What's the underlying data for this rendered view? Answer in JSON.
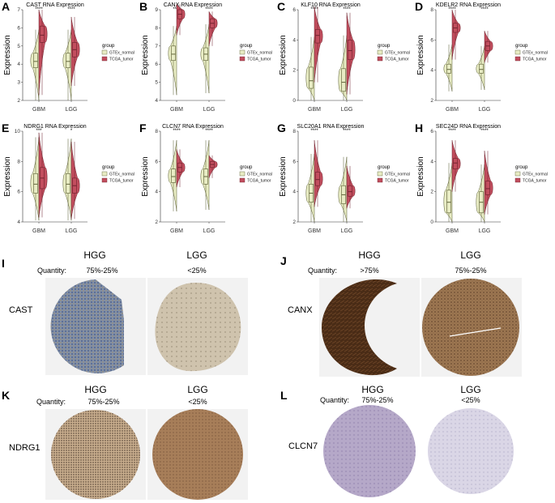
{
  "figure_letters": [
    "A",
    "B",
    "C",
    "D",
    "E",
    "F",
    "G",
    "H",
    "I",
    "J",
    "K",
    "L"
  ],
  "axis_ylabel": "Expression",
  "legend": {
    "title": "group",
    "items": [
      {
        "label": "GTEx_normal",
        "color": "#e8ecc4"
      },
      {
        "label": "TCGA_tumor",
        "color": "#c24e5e"
      }
    ]
  },
  "colors": {
    "normal": "#e8ecc4",
    "tumor": "#c24e5e",
    "normal_stroke": "#55582e",
    "tumor_stroke": "#6a1f2a"
  },
  "chart_data": [
    {
      "type": "violin-box",
      "letter": "A",
      "title": "CAST RNA Expression",
      "categories": [
        "GBM",
        "LGG"
      ],
      "ylim": [
        2,
        7
      ],
      "yticks": [
        2,
        3,
        4,
        5,
        6,
        7
      ],
      "ylabel": "Expression",
      "significance": [
        "****",
        "****"
      ],
      "series": [
        {
          "name": "GTEx_normal",
          "groups": [
            {
              "min": 2.0,
              "q1": 3.8,
              "median": 4.15,
              "q3": 4.6,
              "max": 5.9
            },
            {
              "min": 2.0,
              "q1": 3.8,
              "median": 4.15,
              "q3": 4.6,
              "max": 5.9
            }
          ]
        },
        {
          "name": "TCGA_tumor",
          "groups": [
            {
              "min": 2.3,
              "q1": 5.2,
              "median": 5.6,
              "q3": 6.1,
              "max": 7.0
            },
            {
              "min": 2.8,
              "q1": 4.4,
              "median": 4.8,
              "q3": 5.2,
              "max": 6.6
            }
          ]
        }
      ]
    },
    {
      "type": "violin-box",
      "letter": "B",
      "title": "CANX RNA Expression",
      "categories": [
        "GBM",
        "LGG"
      ],
      "ylim": [
        4,
        9
      ],
      "yticks": [
        4,
        5,
        6,
        7,
        8,
        9
      ],
      "ylabel": "Expression",
      "significance": [
        "****",
        "****"
      ],
      "series": [
        {
          "name": "GTEx_normal",
          "groups": [
            {
              "min": 4.3,
              "q1": 6.2,
              "median": 6.55,
              "q3": 7.0,
              "max": 8.1
            },
            {
              "min": 4.4,
              "q1": 6.2,
              "median": 6.55,
              "q3": 6.9,
              "max": 8.2
            }
          ]
        },
        {
          "name": "TCGA_tumor",
          "groups": [
            {
              "min": 7.6,
              "q1": 8.5,
              "median": 8.75,
              "q3": 9.0,
              "max": 9.3
            },
            {
              "min": 7.0,
              "q1": 8.0,
              "median": 8.25,
              "q3": 8.5,
              "max": 8.9
            }
          ]
        }
      ]
    },
    {
      "type": "violin-box",
      "letter": "C",
      "title": "KLF10 RNA Expression",
      "categories": [
        "GBM",
        "LGG"
      ],
      "ylim": [
        0,
        6
      ],
      "yticks": [
        0,
        2,
        4,
        6
      ],
      "ylabel": "Expression",
      "significance": [
        "****",
        "****"
      ],
      "series": [
        {
          "name": "GTEx_normal",
          "groups": [
            {
              "min": 0.0,
              "q1": 0.8,
              "median": 1.3,
              "q3": 2.2,
              "max": 4.2
            },
            {
              "min": 0.0,
              "q1": 0.6,
              "median": 1.2,
              "q3": 2.1,
              "max": 4.3
            }
          ]
        },
        {
          "name": "TCGA_tumor",
          "groups": [
            {
              "min": 1.2,
              "q1": 3.8,
              "median": 4.3,
              "q3": 4.7,
              "max": 6.2
            },
            {
              "min": 0.4,
              "q1": 2.7,
              "median": 3.3,
              "q3": 4.0,
              "max": 5.8
            }
          ]
        }
      ]
    },
    {
      "type": "violin-box",
      "letter": "D",
      "title": "KDELR2 RNA Expression",
      "categories": [
        "GBM",
        "LGG"
      ],
      "ylim": [
        2,
        8
      ],
      "yticks": [
        2,
        4,
        6,
        8
      ],
      "ylabel": "Expression",
      "significance": [
        "****",
        "****"
      ],
      "series": [
        {
          "name": "GTEx_normal",
          "groups": [
            {
              "min": 2.6,
              "q1": 3.8,
              "median": 4.05,
              "q3": 4.4,
              "max": 5.7
            },
            {
              "min": 2.7,
              "q1": 3.8,
              "median": 4.05,
              "q3": 4.4,
              "max": 5.6
            }
          ]
        },
        {
          "name": "TCGA_tumor",
          "groups": [
            {
              "min": 4.7,
              "q1": 6.5,
              "median": 6.8,
              "q3": 7.1,
              "max": 8.0
            },
            {
              "min": 4.5,
              "q1": 5.3,
              "median": 5.6,
              "q3": 5.9,
              "max": 6.6
            }
          ]
        }
      ]
    },
    {
      "type": "violin-box",
      "letter": "E",
      "title": "NDRG1 RNA Expression",
      "categories": [
        "GBM",
        "LGG"
      ],
      "ylim": [
        4,
        10
      ],
      "yticks": [
        4,
        6,
        8,
        10
      ],
      "ylabel": "Expression",
      "significance": [
        "***",
        "*"
      ],
      "series": [
        {
          "name": "GTEx_normal",
          "groups": [
            {
              "min": 4.1,
              "q1": 5.9,
              "median": 6.5,
              "q3": 7.2,
              "max": 9.6
            },
            {
              "min": 4.1,
              "q1": 5.9,
              "median": 6.5,
              "q3": 7.2,
              "max": 9.5
            }
          ]
        },
        {
          "name": "TCGA_tumor",
          "groups": [
            {
              "min": 4.3,
              "q1": 6.2,
              "median": 6.9,
              "q3": 7.6,
              "max": 9.9
            },
            {
              "min": 4.2,
              "q1": 5.9,
              "median": 6.4,
              "q3": 6.9,
              "max": 9.3
            }
          ]
        }
      ]
    },
    {
      "type": "violin-box",
      "letter": "F",
      "title": "CLCN7 RNA Expression",
      "categories": [
        "GBM",
        "LGG"
      ],
      "ylim": [
        2,
        8
      ],
      "yticks": [
        2,
        4,
        6,
        8
      ],
      "ylabel": "Expression",
      "significance": [
        "****",
        "****"
      ],
      "series": [
        {
          "name": "GTEx_normal",
          "groups": [
            {
              "min": 2.7,
              "q1": 4.6,
              "median": 5.0,
              "q3": 5.5,
              "max": 7.4
            },
            {
              "min": 2.8,
              "q1": 4.5,
              "median": 5.0,
              "q3": 5.5,
              "max": 7.4
            }
          ]
        },
        {
          "name": "TCGA_tumor",
          "groups": [
            {
              "min": 4.3,
              "q1": 5.3,
              "median": 5.6,
              "q3": 5.9,
              "max": 6.8
            },
            {
              "min": 4.9,
              "q1": 5.6,
              "median": 5.8,
              "q3": 6.0,
              "max": 6.4
            }
          ]
        }
      ]
    },
    {
      "type": "violin-box",
      "letter": "G",
      "title": "SLC20A1 RNA Expression",
      "categories": [
        "GBM",
        "LGG"
      ],
      "ylim": [
        2,
        8
      ],
      "yticks": [
        2,
        4,
        6,
        8
      ],
      "ylabel": "Expression",
      "significance": [
        "****",
        "****"
      ],
      "series": [
        {
          "name": "GTEx_normal",
          "groups": [
            {
              "min": 2.0,
              "q1": 3.3,
              "median": 3.9,
              "q3": 4.5,
              "max": 6.5
            },
            {
              "min": 2.0,
              "q1": 3.2,
              "median": 3.8,
              "q3": 4.4,
              "max": 6.3
            }
          ]
        },
        {
          "name": "TCGA_tumor",
          "groups": [
            {
              "min": 3.0,
              "q1": 4.4,
              "median": 4.8,
              "q3": 5.3,
              "max": 7.4
            },
            {
              "min": 2.9,
              "q1": 3.7,
              "median": 4.0,
              "q3": 4.4,
              "max": 5.7
            }
          ]
        }
      ]
    },
    {
      "type": "violin-box",
      "letter": "H",
      "title": "SEC24D RNA Expression",
      "categories": [
        "GBM",
        "LGG"
      ],
      "ylim": [
        0,
        6
      ],
      "yticks": [
        0,
        2,
        4,
        6
      ],
      "ylabel": "Expression",
      "significance": [
        "****",
        "****"
      ],
      "series": [
        {
          "name": "GTEx_normal",
          "groups": [
            {
              "min": 0.0,
              "q1": 0.6,
              "median": 1.3,
              "q3": 2.1,
              "max": 3.9
            },
            {
              "min": 0.0,
              "q1": 0.6,
              "median": 1.3,
              "q3": 2.0,
              "max": 3.8
            }
          ]
        },
        {
          "name": "TCGA_tumor",
          "groups": [
            {
              "min": 2.0,
              "q1": 3.5,
              "median": 3.9,
              "q3": 4.2,
              "max": 5.4
            },
            {
              "min": 0.5,
              "q1": 1.8,
              "median": 2.2,
              "q3": 2.7,
              "max": 4.7
            }
          ]
        }
      ]
    }
  ],
  "ihc_panels": [
    {
      "letter": "I",
      "gene": "CAST",
      "quantity_label": "Quantity:",
      "hgg": {
        "label": "HGG",
        "quantity": "75%-25%"
      },
      "lgg": {
        "label": "LGG",
        "quantity": "<25%"
      }
    },
    {
      "letter": "J",
      "gene": "CANX",
      "quantity_label": "Quantity:",
      "hgg": {
        "label": "HGG",
        "quantity": ">75%"
      },
      "lgg": {
        "label": "LGG",
        "quantity": "75%-25%"
      }
    },
    {
      "letter": "K",
      "gene": "NDRG1",
      "quantity_label": "Quantity:",
      "hgg": {
        "label": "HGG",
        "quantity": "75%-25%"
      },
      "lgg": {
        "label": "LGG",
        "quantity": "<25%"
      }
    },
    {
      "letter": "L",
      "gene": "CLCN7",
      "quantity_label": "Quantity:",
      "hgg": {
        "label": "HGG",
        "quantity": "75%-25%"
      },
      "lgg": {
        "label": "LGG",
        "quantity": "<25%"
      }
    }
  ]
}
